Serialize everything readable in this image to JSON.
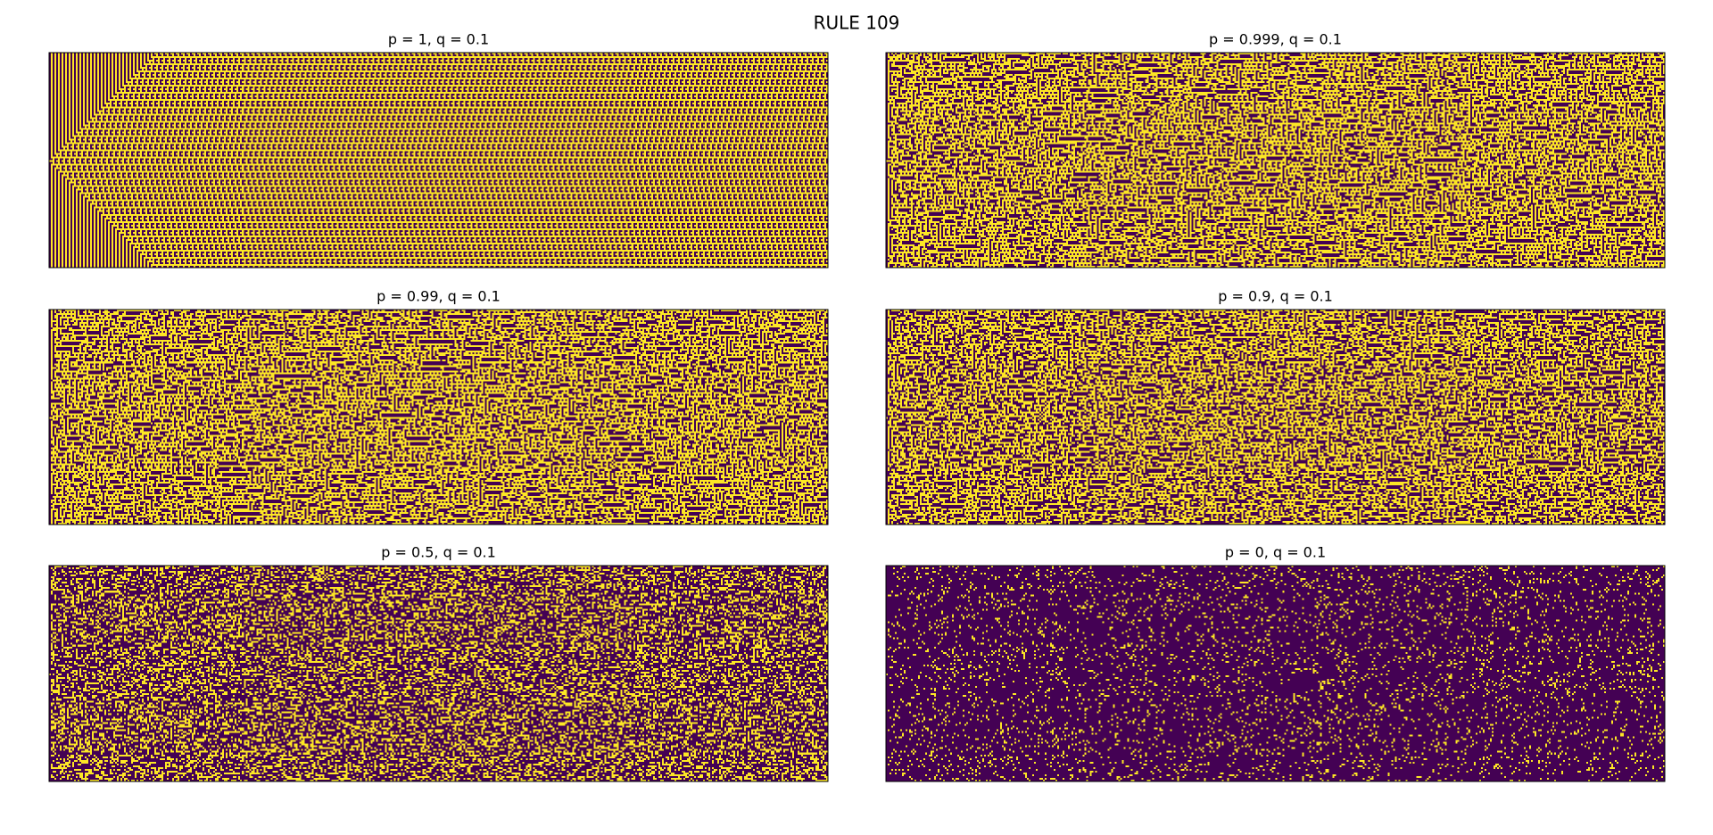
{
  "title": "RULE 109",
  "panels": [
    {
      "title": "p = 1, q = 0.1"
    },
    {
      "title": "p = 0.999, q = 0.1"
    },
    {
      "title": "p = 0.99, q = 0.1"
    },
    {
      "title": "p = 0.9, q = 0.1"
    },
    {
      "title": "p = 0.5, q = 0.1"
    },
    {
      "title": "p = 0, q = 0.1"
    }
  ]
}
